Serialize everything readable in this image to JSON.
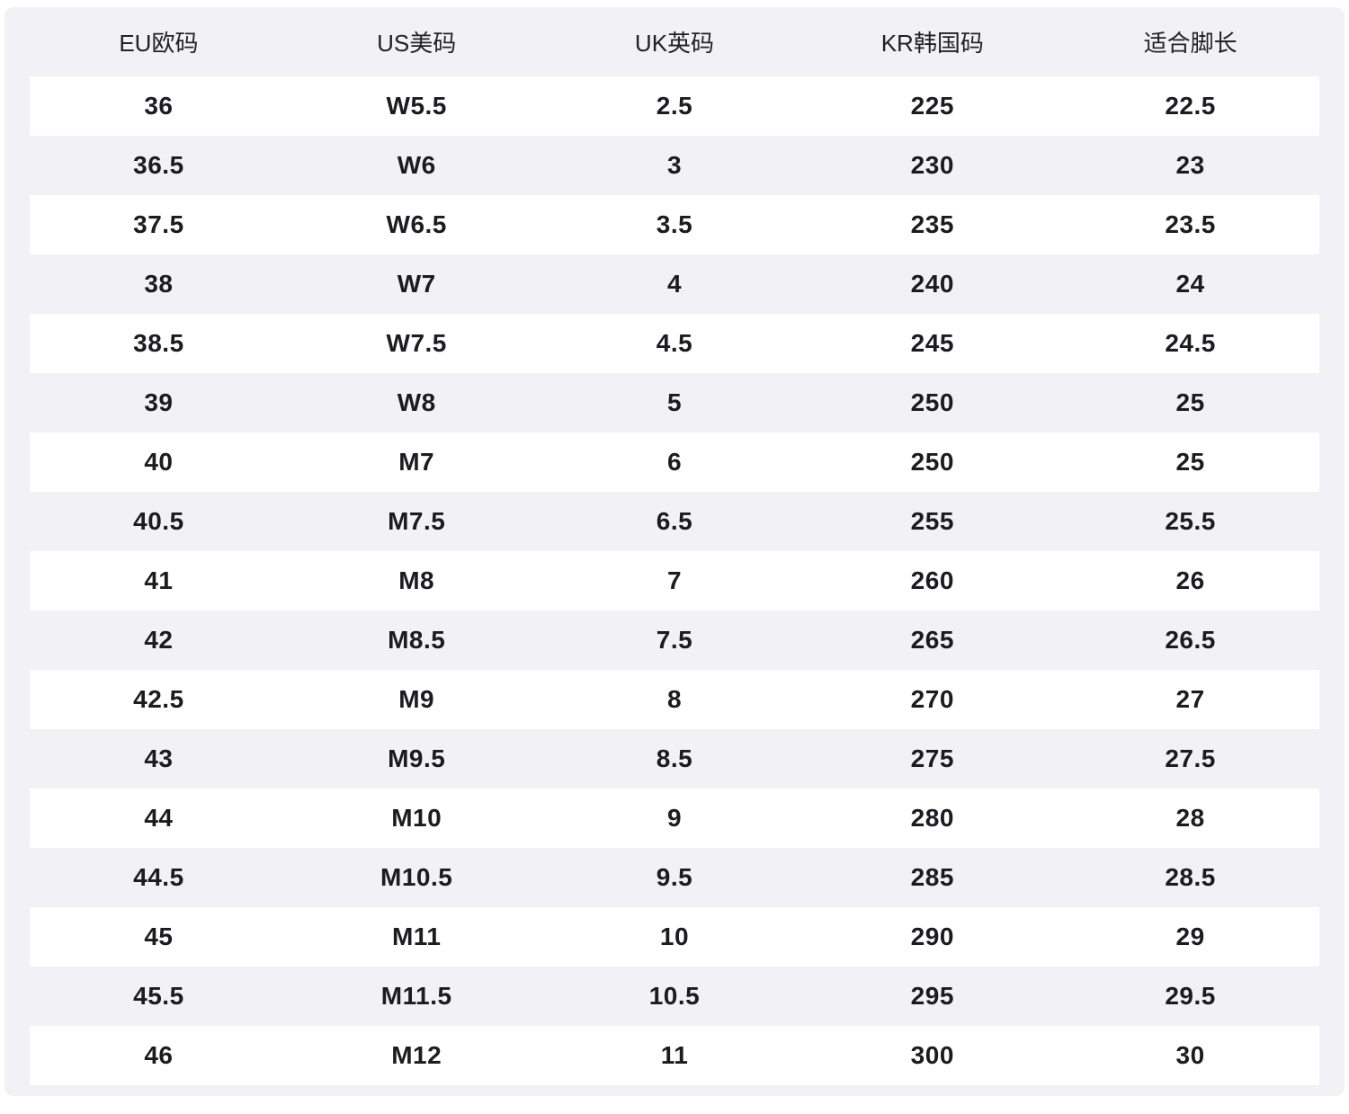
{
  "colors": {
    "page_bg": "#ffffff",
    "card_bg": "#f1f1f6",
    "stripe_row_bg": "#ffffff",
    "header_text": "#222226",
    "data_text": "#1c1c20"
  },
  "table": {
    "headers": [
      "EU欧码",
      "US美码",
      "UK英码",
      "KR韩国码",
      "适合脚长"
    ],
    "rows": [
      [
        "36",
        "W5.5",
        "2.5",
        "225",
        "22.5"
      ],
      [
        "36.5",
        "W6",
        "3",
        "230",
        "23"
      ],
      [
        "37.5",
        "W6.5",
        "3.5",
        "235",
        "23.5"
      ],
      [
        "38",
        "W7",
        "4",
        "240",
        "24"
      ],
      [
        "38.5",
        "W7.5",
        "4.5",
        "245",
        "24.5"
      ],
      [
        "39",
        "W8",
        "5",
        "250",
        "25"
      ],
      [
        "40",
        "M7",
        "6",
        "250",
        "25"
      ],
      [
        "40.5",
        "M7.5",
        "6.5",
        "255",
        "25.5"
      ],
      [
        "41",
        "M8",
        "7",
        "260",
        "26"
      ],
      [
        "42",
        "M8.5",
        "7.5",
        "265",
        "26.5"
      ],
      [
        "42.5",
        "M9",
        "8",
        "270",
        "27"
      ],
      [
        "43",
        "M9.5",
        "8.5",
        "275",
        "27.5"
      ],
      [
        "44",
        "M10",
        "9",
        "280",
        "28"
      ],
      [
        "44.5",
        "M10.5",
        "9.5",
        "285",
        "28.5"
      ],
      [
        "45",
        "M11",
        "10",
        "290",
        "29"
      ],
      [
        "45.5",
        "M11.5",
        "10.5",
        "295",
        "29.5"
      ],
      [
        "46",
        "M12",
        "11",
        "300",
        "30"
      ]
    ]
  },
  "chart_data": {
    "type": "table",
    "title": "",
    "columns": [
      "EU欧码",
      "US美码",
      "UK英码",
      "KR韩国码",
      "适合脚长"
    ],
    "rows": [
      [
        "36",
        "W5.5",
        "2.5",
        "225",
        "22.5"
      ],
      [
        "36.5",
        "W6",
        "3",
        "230",
        "23"
      ],
      [
        "37.5",
        "W6.5",
        "3.5",
        "235",
        "23.5"
      ],
      [
        "38",
        "W7",
        "4",
        "240",
        "24"
      ],
      [
        "38.5",
        "W7.5",
        "4.5",
        "245",
        "24.5"
      ],
      [
        "39",
        "W8",
        "5",
        "250",
        "25"
      ],
      [
        "40",
        "M7",
        "6",
        "250",
        "25"
      ],
      [
        "40.5",
        "M7.5",
        "6.5",
        "255",
        "25.5"
      ],
      [
        "41",
        "M8",
        "7",
        "260",
        "26"
      ],
      [
        "42",
        "M8.5",
        "7.5",
        "265",
        "26.5"
      ],
      [
        "42.5",
        "M9",
        "8",
        "270",
        "27"
      ],
      [
        "43",
        "M9.5",
        "8.5",
        "275",
        "27.5"
      ],
      [
        "44",
        "M10",
        "9",
        "280",
        "28"
      ],
      [
        "44.5",
        "M10.5",
        "9.5",
        "285",
        "28.5"
      ],
      [
        "45",
        "M11",
        "10",
        "290",
        "29"
      ],
      [
        "45.5",
        "M11.5",
        "10.5",
        "295",
        "29.5"
      ],
      [
        "46",
        "M12",
        "11",
        "300",
        "30"
      ]
    ],
    "layout_hints": {
      "striped": true,
      "stripe_pattern": "odd-rows-white-on-gray-card",
      "alignment": "center"
    }
  }
}
